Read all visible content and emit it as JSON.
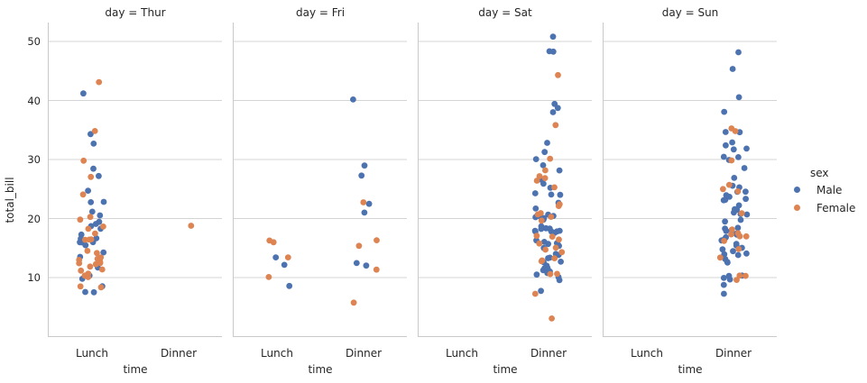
{
  "chart_data": {
    "type": "scatter",
    "subtype": "strip-plot-faceted",
    "x": "time",
    "y": "total_bill",
    "hue": "sex",
    "col": "day",
    "xlabel": "time",
    "ylabel": "total_bill",
    "x_categories": [
      "Lunch",
      "Dinner"
    ],
    "y_ticks": [
      10,
      20,
      30,
      40,
      50
    ],
    "ylim": [
      0,
      53.2
    ],
    "grid": "horizontal",
    "background": "#ffffff",
    "legend": {
      "title": "sex",
      "position": "right",
      "entries": [
        {
          "label": "Male",
          "color": "#4c72b0"
        },
        {
          "label": "Female",
          "color": "#dd8452"
        }
      ]
    },
    "facets": [
      {
        "day": "Thur",
        "title": "day = Thur",
        "points": {
          "Lunch": {
            "Male": [
              27.2,
              22.76,
              17.29,
              19.44,
              16.66,
              32.68,
              15.98,
              13.03,
              18.28,
              24.71,
              21.16,
              11.69,
              14.26,
              15.95,
              8.52,
              22.82,
              19.08,
              16.0,
              34.3,
              41.19,
              9.78,
              7.51,
              28.44,
              15.48,
              16.58,
              7.56,
              10.34,
              13.51,
              18.71,
              20.53
            ],
            "Female": [
              10.07,
              34.83,
              10.65,
              12.43,
              24.08,
              13.42,
              12.48,
              29.8,
              14.52,
              11.38,
              20.27,
              11.17,
              12.26,
              18.26,
              8.51,
              10.33,
              14.15,
              13.16,
              17.47,
              27.05,
              16.43,
              8.35,
              18.64,
              11.87,
              19.81,
              43.11,
              13.0,
              12.74,
              13.0,
              16.4,
              16.47
            ]
          },
          "Dinner": {
            "Male": [],
            "Female": [
              18.78
            ]
          }
        }
      },
      {
        "day": "Fri",
        "title": "day = Fri",
        "points": {
          "Lunch": {
            "Male": [
              12.16,
              8.58,
              13.42
            ],
            "Female": [
              13.42,
              15.98,
              16.27,
              10.09
            ]
          },
          "Dinner": {
            "Male": [
              28.97,
              22.49,
              40.17,
              27.28,
              12.03,
              21.01,
              12.46
            ],
            "Female": [
              5.75,
              16.32,
              22.75,
              11.35,
              15.38
            ]
          }
        }
      },
      {
        "day": "Sat",
        "title": "day = Sat",
        "points": {
          "Lunch": {
            "Male": [],
            "Female": []
          },
          "Dinner": {
            "Male": [
              20.65,
              17.92,
              39.42,
              19.82,
              17.81,
              13.37,
              12.69,
              21.7,
              9.55,
              18.35,
              17.78,
              24.06,
              16.31,
              18.69,
              31.27,
              16.04,
              38.01,
              11.24,
              48.27,
              20.29,
              13.81,
              11.02,
              18.29,
              17.59,
              20.08,
              20.23,
              15.01,
              12.02,
              10.51,
              17.92,
              15.36,
              20.49,
              25.21,
              18.24,
              14.0,
              50.81,
              15.81,
              26.59,
              38.73,
              24.27,
              30.06,
              25.89,
              48.33,
              28.15,
              11.59,
              7.74,
              20.45,
              13.28,
              24.01,
              15.69,
              11.61,
              10.77,
              15.53,
              10.07,
              12.6,
              32.83,
              29.03,
              22.67,
              17.82
            ],
            "Female": [
              20.29,
              15.77,
              19.65,
              15.06,
              20.69,
              16.93,
              26.41,
              16.45,
              3.07,
              17.07,
              26.86,
              25.28,
              14.73,
              44.3,
              22.42,
              20.92,
              14.31,
              7.25,
              10.59,
              10.63,
              12.76,
              13.27,
              28.17,
              12.9,
              30.14,
              22.12,
              35.83,
              27.18
            ]
          }
        }
      },
      {
        "day": "Sun",
        "title": "day = Sun",
        "points": {
          "Lunch": {
            "Male": [],
            "Female": []
          },
          "Dinner": {
            "Male": [
              10.34,
              21.01,
              23.68,
              25.29,
              8.77,
              26.88,
              15.04,
              14.78,
              10.27,
              15.42,
              18.43,
              21.58,
              16.29,
              17.46,
              13.94,
              9.68,
              30.4,
              18.29,
              22.23,
              32.4,
              28.55,
              18.04,
              12.54,
              9.94,
              25.56,
              19.49,
              38.07,
              23.95,
              29.93,
              14.07,
              13.13,
              17.26,
              24.55,
              19.77,
              48.17,
              16.49,
              21.5,
              12.66,
              13.81,
              24.52,
              20.76,
              31.71,
              7.25,
              31.85,
              16.82,
              32.9,
              17.89,
              14.48,
              34.63,
              34.65,
              23.33,
              45.35,
              23.17,
              40.55,
              20.69,
              30.46,
              23.1,
              15.69
            ],
            "Female": [
              16.99,
              24.59,
              35.26,
              14.83,
              10.33,
              16.97,
              10.29,
              34.81,
              25.71,
              17.31,
              29.85,
              25.0,
              13.39,
              16.21,
              17.51,
              9.6,
              20.9,
              18.15
            ]
          }
        }
      }
    ]
  }
}
